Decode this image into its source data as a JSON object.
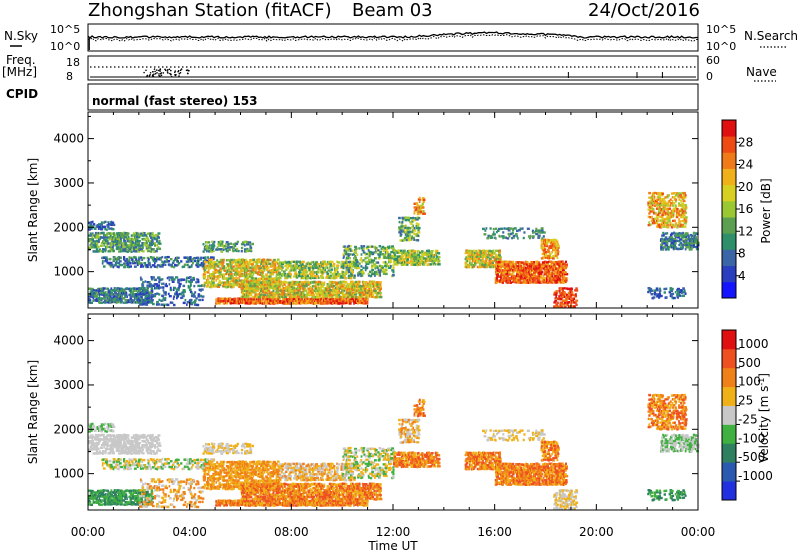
{
  "header": {
    "station_title": "Zhongshan Station (fitACF)",
    "beam": "Beam 03",
    "date": "24/Oct/2016"
  },
  "noise_panel": {
    "left_label": "N.Sky",
    "right_label": "N.Search",
    "left_ticks": [
      "10^5",
      "10^0"
    ],
    "right_ticks": [
      "10^5",
      "10^0"
    ]
  },
  "freq_panel": {
    "left_label_1": "Freq.",
    "left_label_2": "[MHz]",
    "left_ticks": [
      "18",
      "8"
    ],
    "right_label": "Nave",
    "right_ticks": [
      "60",
      "0"
    ]
  },
  "cpid": {
    "label": "CPID",
    "mode_text": "normal (fast stereo) 153"
  },
  "colors": {
    "noise_line": "#000000"
  },
  "chart_data": [
    {
      "type": "heatmap",
      "title": "",
      "xlabel": "",
      "ylabel": "Slant Range [km]",
      "y_ticks": [
        1000,
        2000,
        3000,
        4000
      ],
      "x_ticks": [
        "00:00",
        "04:00",
        "08:00",
        "12:00",
        "16:00",
        "20:00",
        "00:00"
      ],
      "ylim": [
        180,
        4600
      ],
      "xlim_hours": [
        0,
        24
      ],
      "colorbar": {
        "label": "Power [dB]",
        "ticks": [
          "4",
          "8",
          "12",
          "16",
          "20",
          "24",
          "28"
        ],
        "colors": [
          "#1414ff",
          "#2a3fbf",
          "#3a66a8",
          "#2e8f6a",
          "#5aa050",
          "#9ac832",
          "#d8d020",
          "#f0b01a",
          "#f07a18",
          "#ee4a14",
          "#e01010"
        ]
      }
    },
    {
      "type": "heatmap",
      "title": "",
      "xlabel": "Time UT",
      "ylabel": "Slant Range [km]",
      "y_ticks": [
        1000,
        2000,
        3000,
        4000
      ],
      "x_ticks": [
        "00:00",
        "04:00",
        "08:00",
        "12:00",
        "16:00",
        "20:00",
        "00:00"
      ],
      "ylim": [
        180,
        4600
      ],
      "xlim_hours": [
        0,
        24
      ],
      "colorbar": {
        "label": "Velocity [m s",
        "label_sup": "-1",
        "label_close": "]",
        "ticks": [
          "1000",
          "500",
          "100",
          "25",
          "-25",
          "-100",
          "-500",
          "-1000"
        ],
        "colors": [
          "#2030e0",
          "#2a5ab0",
          "#2e8060",
          "#40b040",
          "#c8c8c8",
          "#f0b018",
          "#f08018",
          "#ee5020",
          "#e01010"
        ]
      }
    }
  ]
}
